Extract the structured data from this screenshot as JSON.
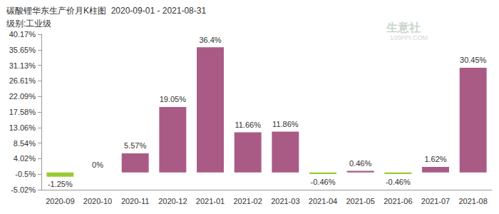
{
  "chart_data": {
    "type": "bar",
    "title": "碳酸锂华东生产价月K柱图  2020-09-01 - 2021-08-31",
    "subtitle": "级别:工业级",
    "annotations": [
      "生意社",
      "100PPI.COM"
    ],
    "categories": [
      "2020-09",
      "2020-10",
      "2020-11",
      "2020-12",
      "2021-01",
      "2021-02",
      "2021-03",
      "2021-04",
      "2021-05",
      "2021-06",
      "2021-07",
      "2021-08"
    ],
    "values": [
      -1.25,
      0,
      5.57,
      19.05,
      36.4,
      11.66,
      11.86,
      -0.46,
      0.46,
      -0.46,
      1.62,
      30.45
    ],
    "value_labels": [
      "-1.25%",
      "0%",
      "5.57%",
      "19.05%",
      "36.4%",
      "11.66%",
      "11.86%",
      "-0.46%",
      "0.46%",
      "-0.46%",
      "1.62%",
      "30.45%"
    ],
    "colors": [
      "#99cc33",
      "#a95b85",
      "#a95b85",
      "#a95b85",
      "#a95b85",
      "#a95b85",
      "#a95b85",
      "#99cc33",
      "#a95b85",
      "#99cc33",
      "#a95b85",
      "#a95b85"
    ],
    "ylim": [
      -5.02,
      40.17
    ],
    "yticks": [
      {
        "value": -5.02,
        "label": "-5.02%"
      },
      {
        "value": -0.5,
        "label": "-0.5%"
      },
      {
        "value": 4.02,
        "label": "4.02%"
      },
      {
        "value": 8.54,
        "label": "8.54%"
      },
      {
        "value": 13.06,
        "label": "13.06%"
      },
      {
        "value": 17.58,
        "label": "17.58%"
      },
      {
        "value": 22.09,
        "label": "22.09%"
      },
      {
        "value": 26.61,
        "label": "26.61%"
      },
      {
        "value": 31.13,
        "label": "31.13%"
      },
      {
        "value": 35.65,
        "label": "35.65%"
      },
      {
        "value": 40.17,
        "label": "40.17%"
      }
    ],
    "grid": false,
    "data_labels": true
  }
}
